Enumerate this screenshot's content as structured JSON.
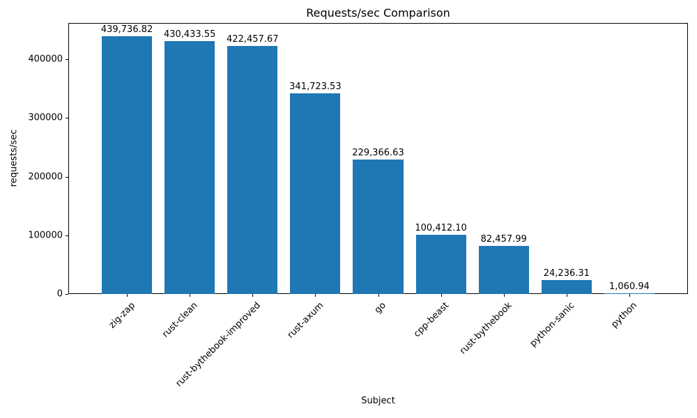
{
  "chart_data": {
    "type": "bar",
    "title": "Requests/sec Comparison",
    "xlabel": "Subject",
    "ylabel": "requests/sec",
    "categories": [
      "zig-zap",
      "rust-clean",
      "rust-bythebook-improved",
      "rust-axum",
      "go",
      "cpp-beast",
      "rust-bythebook",
      "python-sanic",
      "python"
    ],
    "values": [
      439736.82,
      430433.55,
      422457.67,
      341723.53,
      229366.63,
      100412.1,
      82457.99,
      24236.31,
      1060.94
    ],
    "value_labels": [
      "439,736.82",
      "430,433.55",
      "422,457.67",
      "341,723.53",
      "229,366.63",
      "100,412.10",
      "82,457.99",
      "24,236.31",
      "1,060.94"
    ],
    "yticks": [
      0,
      100000,
      200000,
      300000,
      400000
    ],
    "ytick_labels": [
      "0",
      "100000",
      "200000",
      "300000",
      "400000"
    ],
    "ylim": [
      0,
      461723
    ],
    "bar_color": "#1f77b4",
    "grid": false,
    "legend": null
  }
}
